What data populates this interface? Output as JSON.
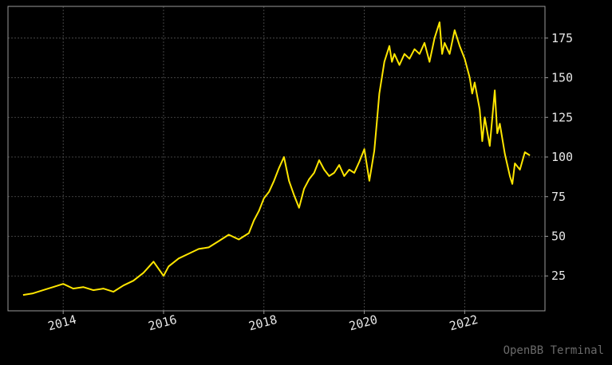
{
  "chart_data": {
    "type": "line",
    "title": "",
    "xlabel": "",
    "ylabel": "",
    "xlim": [
      2012.9,
      2023.6
    ],
    "ylim": [
      3,
      195
    ],
    "x_ticks": [
      2014,
      2016,
      2018,
      2020,
      2022
    ],
    "x_tick_labels": [
      "2014",
      "2016",
      "2018",
      "2020",
      "2022"
    ],
    "y_ticks": [
      25,
      50,
      75,
      100,
      125,
      150,
      175
    ],
    "y_tick_labels": [
      "25",
      "50",
      "75",
      "100",
      "125",
      "150",
      "175"
    ],
    "y_axis_side": "right",
    "grid": true,
    "legend": "none",
    "colors": {
      "background": "#000000",
      "line": "#ffe600",
      "grid": "#555555",
      "axes": "#9a9a9a"
    },
    "series": [
      {
        "x": [
          2013.2,
          2013.4,
          2013.6,
          2013.8,
          2014.0,
          2014.2,
          2014.4,
          2014.6,
          2014.8,
          2015.0,
          2015.2,
          2015.4,
          2015.6,
          2015.8,
          2016.0,
          2016.1,
          2016.3,
          2016.5,
          2016.7,
          2016.9,
          2017.1,
          2017.3,
          2017.5,
          2017.7,
          2017.8,
          2017.9,
          2018.0,
          2018.1,
          2018.2,
          2018.3,
          2018.4,
          2018.5,
          2018.6,
          2018.7,
          2018.8,
          2018.9,
          2019.0,
          2019.1,
          2019.2,
          2019.3,
          2019.4,
          2019.5,
          2019.6,
          2019.7,
          2019.8,
          2019.9,
          2020.0,
          2020.1,
          2020.2,
          2020.25,
          2020.3,
          2020.4,
          2020.5,
          2020.55,
          2020.6,
          2020.7,
          2020.8,
          2020.9,
          2021.0,
          2021.1,
          2021.2,
          2021.3,
          2021.4,
          2021.5,
          2021.55,
          2021.6,
          2021.7,
          2021.8,
          2021.9,
          2022.0,
          2022.1,
          2022.15,
          2022.2,
          2022.3,
          2022.35,
          2022.4,
          2022.5,
          2022.6,
          2022.65,
          2022.7,
          2022.8,
          2022.9,
          2022.95,
          2023.0,
          2023.1,
          2023.2,
          2023.3
        ],
        "y": [
          13,
          14,
          16,
          18,
          20,
          17,
          18,
          16,
          17,
          15,
          19,
          22,
          27,
          34,
          25,
          31,
          36,
          39,
          42,
          43,
          47,
          51,
          48,
          52,
          60,
          66,
          74,
          78,
          85,
          93,
          100,
          85,
          76,
          68,
          80,
          86,
          90,
          98,
          92,
          88,
          90,
          95,
          88,
          92,
          90,
          97,
          105,
          85,
          104,
          122,
          140,
          160,
          170,
          160,
          165,
          158,
          165,
          162,
          168,
          165,
          172,
          160,
          175,
          185,
          165,
          172,
          165,
          180,
          170,
          162,
          150,
          140,
          147,
          130,
          110,
          125,
          107,
          142,
          115,
          121,
          102,
          88,
          83,
          96,
          92,
          103,
          101
        ]
      }
    ]
  },
  "watermark": "OpenBB Terminal"
}
